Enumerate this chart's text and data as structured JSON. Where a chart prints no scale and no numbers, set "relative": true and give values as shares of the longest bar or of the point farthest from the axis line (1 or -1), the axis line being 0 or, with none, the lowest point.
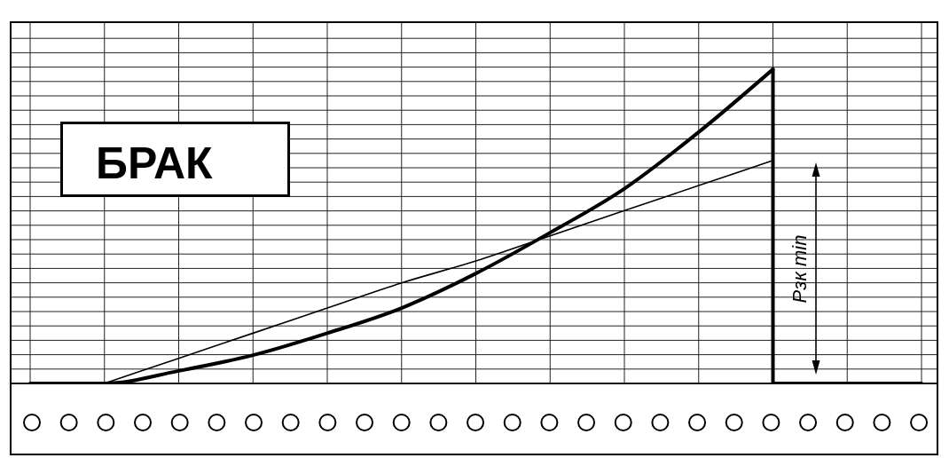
{
  "chart_data": {
    "type": "line",
    "relative": true,
    "grid": true,
    "categories": [
      null,
      null,
      null,
      null,
      null,
      null,
      null,
      null,
      null,
      null,
      null,
      null,
      null
    ],
    "series": [
      {
        "color": "#000000",
        "values": [
          0,
          0,
          0.04,
          0.09,
          0.16,
          0.24,
          0.35,
          0.48,
          0.62,
          0.8,
          1,
          null,
          null
        ]
      },
      {
        "type": "step",
        "color": "#000000",
        "values": [
          null,
          null,
          null,
          null,
          null,
          null,
          null,
          null,
          null,
          null,
          1,
          0,
          0
        ]
      },
      {
        "color": "#000000",
        "values": [
          null,
          0,
          0.08,
          0.16,
          0.24,
          0.32,
          0.39,
          0.47,
          0.55,
          0.63,
          0.71,
          null,
          null
        ]
      }
    ],
    "annotations": [
      "БРАК",
      "Рзк min"
    ]
  }
}
